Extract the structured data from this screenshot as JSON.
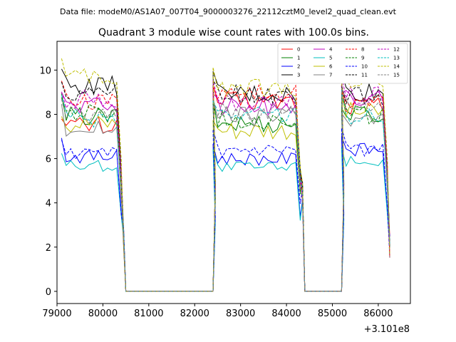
{
  "chart_data": {
    "type": "line",
    "figure_title": "Data file: modeM0/AS1A07_007T04_9000003276_22112cztM0_level2_quad_clean.evt",
    "title": "Quadrant 3 module wise count rates with 100.0s bins.",
    "xlabel": "",
    "ylabel": "",
    "x_offset_label": "+3.101e8",
    "xlim": [
      79000,
      86700
    ],
    "ylim": [
      -0.55,
      11.3
    ],
    "x_ticks": [
      79000,
      80000,
      81000,
      82000,
      83000,
      84000,
      85000,
      86000
    ],
    "y_ticks": [
      0,
      2,
      4,
      6,
      8,
      10
    ],
    "x_tick_labels": [
      "79000",
      "80000",
      "81000",
      "82000",
      "83000",
      "84000",
      "85000",
      "86000"
    ],
    "y_tick_labels": [
      "0",
      "2",
      "4",
      "6",
      "8",
      "10"
    ],
    "legend_position": "upper-right",
    "grid": false,
    "segments": {
      "seg1": {
        "start": 79100,
        "end": 80500,
        "edge_values": [
          2.5
        ]
      },
      "gap1": {
        "start": 80500,
        "end": 82400,
        "value": 0
      },
      "seg2": {
        "start": 82400,
        "end": 84400,
        "edge_values": [
          4.5
        ]
      },
      "gap2": {
        "start": 84400,
        "end": 85200,
        "value": 0
      },
      "seg3": {
        "start": 85200,
        "end": 86300,
        "edge_values": [
          2.0
        ]
      }
    },
    "series": [
      {
        "name": "0",
        "color": "#ff0000",
        "dash": "solid",
        "levels": [
          7.5,
          8.6,
          8.4
        ]
      },
      {
        "name": "1",
        "color": "#008000",
        "dash": "solid",
        "levels": [
          7.9,
          7.6,
          8.0
        ]
      },
      {
        "name": "2",
        "color": "#0000ff",
        "dash": "solid",
        "levels": [
          6.1,
          6.0,
          6.4
        ]
      },
      {
        "name": "3",
        "color": "#000000",
        "dash": "solid",
        "levels": [
          9.3,
          8.9,
          9.0
        ]
      },
      {
        "name": "4",
        "color": "#bf00bf",
        "dash": "solid",
        "levels": [
          8.4,
          8.4,
          8.7
        ]
      },
      {
        "name": "5",
        "color": "#00bfbf",
        "dash": "solid",
        "levels": [
          5.7,
          5.6,
          5.9
        ]
      },
      {
        "name": "6",
        "color": "#bfbf00",
        "dash": "solid",
        "levels": [
          7.6,
          7.3,
          8.1
        ]
      },
      {
        "name": "7",
        "color": "#808080",
        "dash": "solid",
        "levels": [
          7.4,
          7.9,
          7.8
        ]
      },
      {
        "name": "8",
        "color": "#ff0000",
        "dash": "dashed",
        "levels": [
          8.6,
          8.9,
          8.5
        ]
      },
      {
        "name": "9",
        "color": "#008000",
        "dash": "dashed",
        "levels": [
          8.0,
          7.8,
          8.0
        ]
      },
      {
        "name": "10",
        "color": "#0000ff",
        "dash": "dashed",
        "levels": [
          6.2,
          6.3,
          6.4
        ]
      },
      {
        "name": "11",
        "color": "#000000",
        "dash": "dashed",
        "levels": [
          9.0,
          8.9,
          8.8
        ]
      },
      {
        "name": "12",
        "color": "#bf00bf",
        "dash": "dashed",
        "levels": [
          8.7,
          8.5,
          8.9
        ]
      },
      {
        "name": "13",
        "color": "#00bfbf",
        "dash": "dashed",
        "levels": [
          7.8,
          8.1,
          8.0
        ]
      },
      {
        "name": "14",
        "color": "#bfbf00",
        "dash": "dashed",
        "levels": [
          9.6,
          9.2,
          9.5
        ]
      },
      {
        "name": "15",
        "color": "#808080",
        "dash": "dashed",
        "levels": [
          7.9,
          8.1,
          8.4
        ]
      }
    ]
  }
}
